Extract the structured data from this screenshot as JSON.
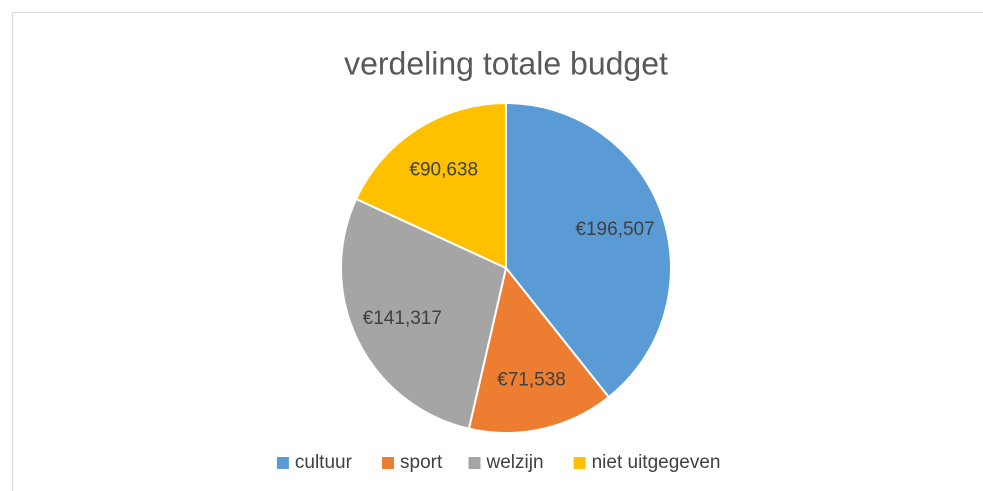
{
  "chart_data": {
    "type": "pie",
    "title": "verdeling totale budget",
    "categories": [
      "cultuur",
      "sport",
      "welzijn",
      "niet uitgegeven"
    ],
    "values": [
      196507,
      71538,
      141317,
      90638
    ],
    "value_labels": [
      "€196,507",
      "€71,538",
      "€141,317",
      "€90,638"
    ],
    "colors": [
      "#5b9bd5",
      "#ed7d31",
      "#a5a5a5",
      "#ffc000"
    ],
    "legend": "bottom"
  }
}
